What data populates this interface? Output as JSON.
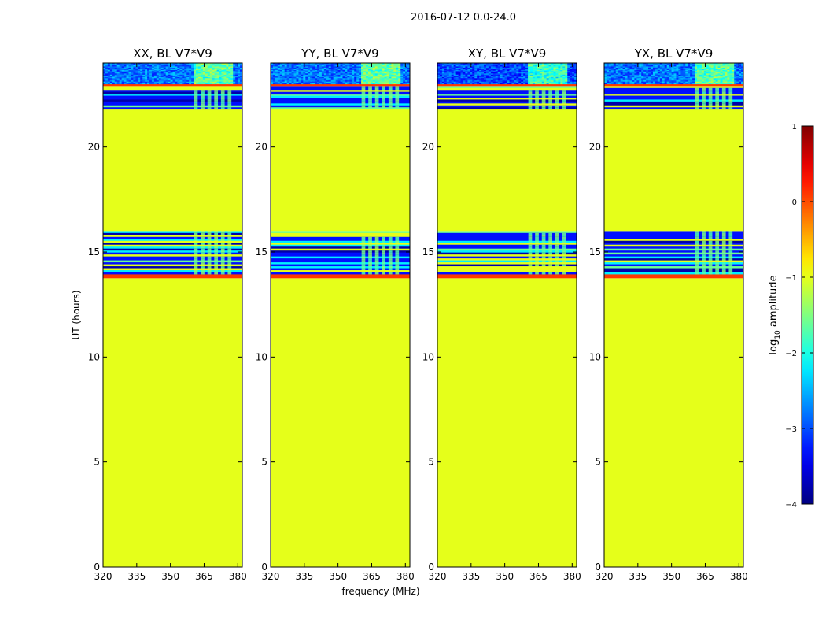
{
  "suptitle": "2016-07-12 0.0-24.0",
  "chart_data": [
    {
      "type": "heatmap",
      "title": "XX, BL V7*V9",
      "xlabel": "",
      "ylabel": "UT (hours)",
      "xlim": [
        320,
        382
      ],
      "ylim": [
        0,
        24
      ],
      "xticks": [
        320,
        335,
        350,
        365,
        380
      ],
      "yticks": [
        0,
        5,
        10,
        15,
        20
      ],
      "flagged_value": -1.0,
      "rfi_channel_band_mhz": [
        360,
        378
      ],
      "segments": [
        {
          "start": 0.0,
          "end": 13.75,
          "pattern": "flagged"
        },
        {
          "start": 13.75,
          "end": 13.95,
          "pattern": "hot",
          "value": 0.1
        },
        {
          "start": 13.95,
          "end": 16.0,
          "pattern": "striped"
        },
        {
          "start": 16.0,
          "end": 21.8,
          "pattern": "flagged"
        },
        {
          "start": 21.8,
          "end": 22.9,
          "pattern": "striped"
        },
        {
          "start": 22.9,
          "end": 23.0,
          "pattern": "hot",
          "value": 0.1
        },
        {
          "start": 23.0,
          "end": 24.0,
          "pattern": "noise",
          "value": -2.8
        }
      ]
    },
    {
      "type": "heatmap",
      "title": "YY, BL V7*V9",
      "xlabel": "frequency (MHz)",
      "ylabel": "",
      "xlim": [
        320,
        382
      ],
      "ylim": [
        0,
        24
      ],
      "xticks": [
        320,
        335,
        350,
        365,
        380
      ],
      "yticks": [
        0,
        5,
        10,
        15,
        20
      ],
      "flagged_value": -1.0,
      "rfi_channel_band_mhz": [
        360,
        378
      ],
      "segments": [
        {
          "start": 0.0,
          "end": 13.75,
          "pattern": "flagged"
        },
        {
          "start": 13.75,
          "end": 13.95,
          "pattern": "hot",
          "value": 0.1
        },
        {
          "start": 13.95,
          "end": 16.0,
          "pattern": "striped"
        },
        {
          "start": 16.0,
          "end": 21.8,
          "pattern": "flagged"
        },
        {
          "start": 21.8,
          "end": 22.9,
          "pattern": "striped"
        },
        {
          "start": 22.9,
          "end": 23.0,
          "pattern": "hot",
          "value": 0.1
        },
        {
          "start": 23.0,
          "end": 24.0,
          "pattern": "noise",
          "value": -2.8
        }
      ]
    },
    {
      "type": "heatmap",
      "title": "XY, BL V7*V9",
      "xlabel": "",
      "ylabel": "",
      "xlim": [
        320,
        382
      ],
      "ylim": [
        0,
        24
      ],
      "xticks": [
        320,
        335,
        350,
        365,
        380
      ],
      "yticks": [
        0,
        5,
        10,
        15,
        20
      ],
      "flagged_value": -1.0,
      "rfi_channel_band_mhz": [
        360,
        378
      ],
      "segments": [
        {
          "start": 0.0,
          "end": 13.75,
          "pattern": "flagged"
        },
        {
          "start": 13.75,
          "end": 13.95,
          "pattern": "hot",
          "value": 0.1
        },
        {
          "start": 13.95,
          "end": 16.0,
          "pattern": "striped"
        },
        {
          "start": 16.0,
          "end": 21.8,
          "pattern": "flagged"
        },
        {
          "start": 21.8,
          "end": 22.9,
          "pattern": "striped"
        },
        {
          "start": 22.9,
          "end": 23.0,
          "pattern": "hot",
          "value": 0.1
        },
        {
          "start": 23.0,
          "end": 24.0,
          "pattern": "noise",
          "value": -3.0
        }
      ]
    },
    {
      "type": "heatmap",
      "title": "YX, BL V7*V9",
      "xlabel": "",
      "ylabel": "",
      "xlim": [
        320,
        382
      ],
      "ylim": [
        0,
        24
      ],
      "xticks": [
        320,
        335,
        350,
        365,
        380
      ],
      "yticks": [
        0,
        5,
        10,
        15,
        20
      ],
      "flagged_value": -1.0,
      "rfi_channel_band_mhz": [
        360,
        378
      ],
      "segments": [
        {
          "start": 0.0,
          "end": 13.75,
          "pattern": "flagged"
        },
        {
          "start": 13.75,
          "end": 13.95,
          "pattern": "hot",
          "value": 0.1
        },
        {
          "start": 13.95,
          "end": 16.0,
          "pattern": "striped"
        },
        {
          "start": 16.0,
          "end": 21.8,
          "pattern": "flagged"
        },
        {
          "start": 21.8,
          "end": 22.9,
          "pattern": "striped"
        },
        {
          "start": 22.9,
          "end": 23.0,
          "pattern": "hot",
          "value": 0.1
        },
        {
          "start": 23.0,
          "end": 24.0,
          "pattern": "noise",
          "value": -2.8
        }
      ]
    }
  ],
  "colorbar": {
    "label_prefix": "log",
    "label_subscript": "10",
    "label_suffix": " amplitude",
    "range": [
      -4,
      1
    ],
    "ticks": [
      "1",
      "0",
      "−1",
      "−2",
      "−3",
      "−4"
    ],
    "tick_values": [
      1,
      0,
      -1,
      -2,
      -3,
      -4
    ],
    "colormap": "jet"
  }
}
